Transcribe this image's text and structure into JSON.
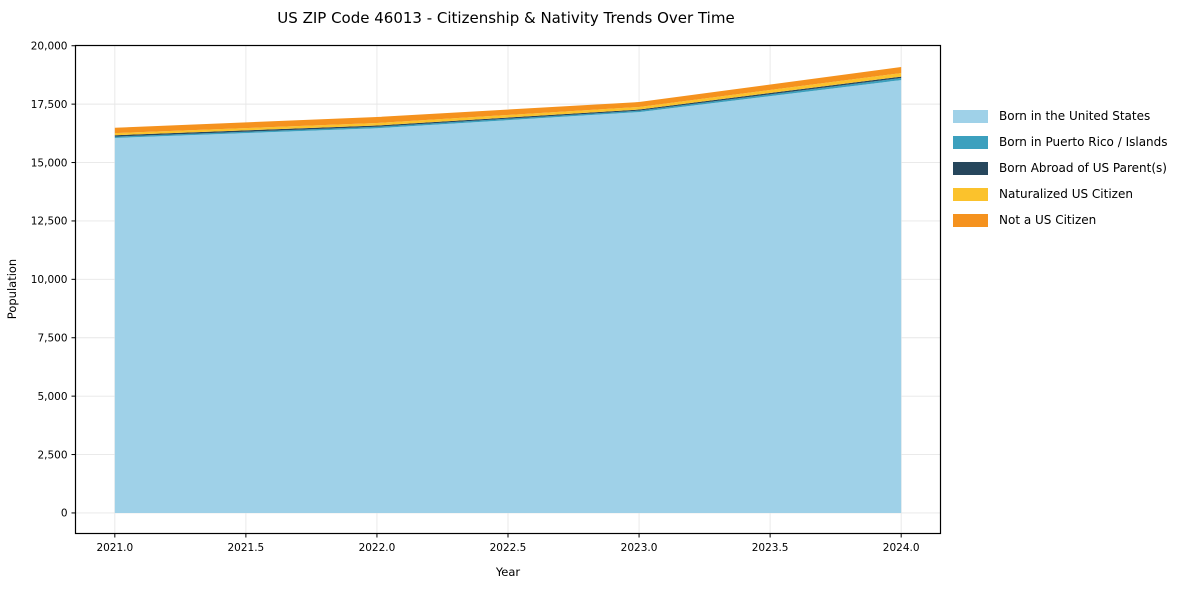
{
  "chart_data": {
    "type": "area",
    "stacked": true,
    "title": "US ZIP Code 46013 - Citizenship & Nativity Trends Over Time",
    "xlabel": "Year",
    "ylabel": "Population",
    "x": [
      2021,
      2022,
      2023,
      2024
    ],
    "series": [
      {
        "name": "Born in the United States",
        "color": "#9fd1e8",
        "values": [
          16050,
          16470,
          17160,
          18530
        ]
      },
      {
        "name": "Born in Puerto Rico / Islands",
        "color": "#3ca0be",
        "values": [
          60,
          60,
          60,
          90
        ]
      },
      {
        "name": "Born Abroad of US Parent(s)",
        "color": "#26465c",
        "values": [
          60,
          55,
          50,
          60
        ]
      },
      {
        "name": "Naturalized US Citizen",
        "color": "#fbc22c",
        "values": [
          90,
          105,
          110,
          150
        ]
      },
      {
        "name": "Not a US Citizen",
        "color": "#f5921e",
        "values": [
          230,
          260,
          210,
          260
        ]
      }
    ],
    "xlim": [
      2020.85,
      2024.15
    ],
    "ylim": [
      -880,
      20010
    ],
    "x_ticks": [
      {
        "value": 2021.0,
        "label": "2021.0"
      },
      {
        "value": 2021.5,
        "label": "2021.5"
      },
      {
        "value": 2022.0,
        "label": "2022.0"
      },
      {
        "value": 2022.5,
        "label": "2022.5"
      },
      {
        "value": 2023.0,
        "label": "2023.0"
      },
      {
        "value": 2023.5,
        "label": "2023.5"
      },
      {
        "value": 2024.0,
        "label": "2024.0"
      }
    ],
    "y_ticks": [
      {
        "value": 0,
        "label": "0"
      },
      {
        "value": 2500,
        "label": "2,500"
      },
      {
        "value": 5000,
        "label": "5,000"
      },
      {
        "value": 7500,
        "label": "7,500"
      },
      {
        "value": 10000,
        "label": "10,000"
      },
      {
        "value": 12500,
        "label": "12,500"
      },
      {
        "value": 15000,
        "label": "15,000"
      },
      {
        "value": 17500,
        "label": "17,500"
      },
      {
        "value": 20000,
        "label": "20,000"
      }
    ],
    "grid": true,
    "grid_color": "#e7e7e7",
    "legend_position": "right"
  }
}
